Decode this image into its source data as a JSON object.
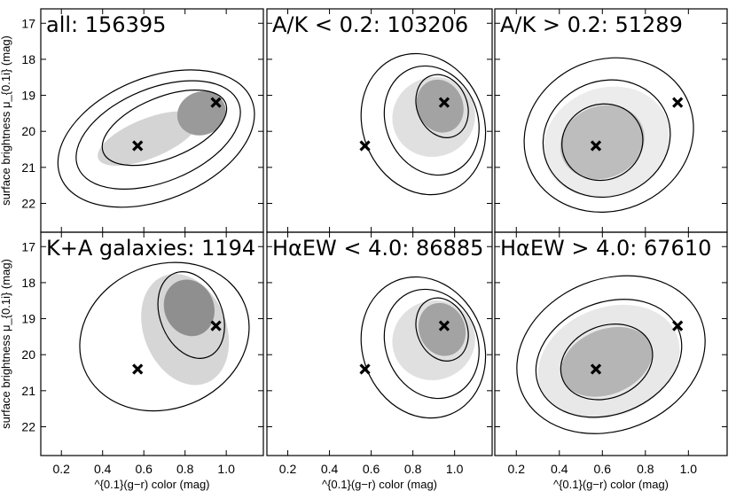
{
  "chart_data": {
    "type": "heatmap",
    "xlabel": "^{0.1}(g−r) color (mag)",
    "ylabel": "surface brightness μ_{0.1i} (mag)",
    "xlim": [
      0.1,
      1.18
    ],
    "ylim": [
      22.8,
      16.6
    ],
    "x_ticks": [
      "0.2",
      "0.4",
      "0.6",
      "0.8",
      "1.0"
    ],
    "x_tick_values": [
      0.2,
      0.4,
      0.6,
      0.8,
      1.0
    ],
    "y_ticks": [
      "17",
      "18",
      "19",
      "20",
      "21",
      "22"
    ],
    "y_tick_values": [
      17,
      18,
      19,
      20,
      21,
      22
    ],
    "markers": [
      {
        "x": 0.57,
        "y": 20.4
      },
      {
        "x": 0.95,
        "y": 19.2
      }
    ],
    "panels": [
      {
        "title": "all: 156395",
        "blobs": [
          {
            "x": 0.88,
            "y": 19.5,
            "rx": 0.12,
            "ry": 0.6,
            "shade": "#9a9a9a"
          },
          {
            "x": 0.62,
            "y": 20.2,
            "rx": 0.26,
            "ry": 0.55,
            "shade": "#d4d4d4"
          }
        ],
        "contours": [
          {
            "x": 0.7,
            "y": 19.9,
            "rx": 0.32,
            "ry": 0.85
          },
          {
            "x": 0.67,
            "y": 20.1,
            "rx": 0.42,
            "ry": 1.3
          },
          {
            "x": 0.66,
            "y": 20.2,
            "rx": 0.5,
            "ry": 1.7
          }
        ]
      },
      {
        "title": "A/K < 0.2: 103206",
        "blobs": [
          {
            "x": 0.93,
            "y": 19.3,
            "rx": 0.11,
            "ry": 0.75,
            "shade": "#a3a3a3"
          },
          {
            "x": 0.9,
            "y": 19.6,
            "rx": 0.2,
            "ry": 1.1,
            "shade": "#e0e0e0"
          }
        ],
        "contours": [
          {
            "x": 0.94,
            "y": 19.3,
            "rx": 0.12,
            "ry": 0.9
          },
          {
            "x": 0.89,
            "y": 19.7,
            "rx": 0.22,
            "ry": 1.55
          },
          {
            "x": 0.85,
            "y": 19.8,
            "rx": 0.29,
            "ry": 2.0
          }
        ]
      },
      {
        "title": "A/K > 0.2: 51289",
        "blobs": [
          {
            "x": 0.6,
            "y": 20.3,
            "rx": 0.2,
            "ry": 1.0,
            "shade": "#bdbdbd"
          },
          {
            "x": 0.62,
            "y": 20.3,
            "rx": 0.3,
            "ry": 1.5,
            "shade": "#ececec"
          }
        ],
        "contours": [
          {
            "x": 0.6,
            "y": 20.3,
            "rx": 0.19,
            "ry": 1.05
          },
          {
            "x": 0.62,
            "y": 20.2,
            "rx": 0.3,
            "ry": 1.6
          },
          {
            "x": 0.63,
            "y": 20.1,
            "rx": 0.4,
            "ry": 2.1
          }
        ]
      },
      {
        "title": "K+A galaxies: 1194",
        "blobs": [
          {
            "x": 0.82,
            "y": 18.7,
            "rx": 0.12,
            "ry": 0.8,
            "shade": "#8f8f8f"
          },
          {
            "x": 0.8,
            "y": 19.3,
            "rx": 0.2,
            "ry": 1.6,
            "shade": "#d6d6d6"
          }
        ],
        "contours": [
          {
            "x": 0.83,
            "y": 18.9,
            "rx": 0.15,
            "ry": 1.25
          },
          {
            "x": 0.7,
            "y": 19.5,
            "rx": 0.42,
            "ry": 2.0
          }
        ]
      },
      {
        "title": "HαEW < 4.0: 86885",
        "blobs": [
          {
            "x": 0.94,
            "y": 19.3,
            "rx": 0.11,
            "ry": 0.75,
            "shade": "#a3a3a3"
          },
          {
            "x": 0.9,
            "y": 19.6,
            "rx": 0.2,
            "ry": 1.1,
            "shade": "#e0e0e0"
          }
        ],
        "contours": [
          {
            "x": 0.94,
            "y": 19.3,
            "rx": 0.12,
            "ry": 0.9
          },
          {
            "x": 0.89,
            "y": 19.7,
            "rx": 0.22,
            "ry": 1.55
          },
          {
            "x": 0.85,
            "y": 19.8,
            "rx": 0.29,
            "ry": 2.0
          }
        ]
      },
      {
        "title": "HαEW > 4.0: 67610",
        "blobs": [
          {
            "x": 0.62,
            "y": 20.2,
            "rx": 0.22,
            "ry": 0.9,
            "shade": "#b5b5b5"
          },
          {
            "x": 0.63,
            "y": 20.2,
            "rx": 0.34,
            "ry": 1.5,
            "shade": "#e8e8e8"
          }
        ],
        "contours": [
          {
            "x": 0.62,
            "y": 20.2,
            "rx": 0.22,
            "ry": 1.0
          },
          {
            "x": 0.63,
            "y": 20.1,
            "rx": 0.35,
            "ry": 1.55
          },
          {
            "x": 0.64,
            "y": 20.0,
            "rx": 0.45,
            "ry": 2.1
          }
        ]
      }
    ]
  }
}
